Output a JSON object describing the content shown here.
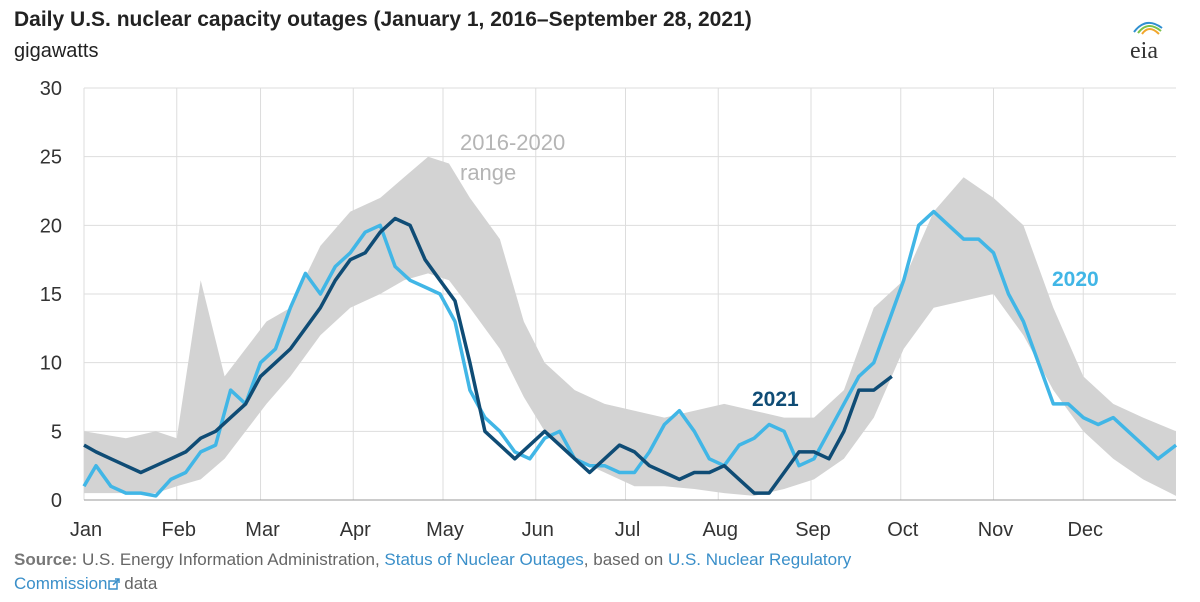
{
  "header": {
    "title": "Daily U.S. nuclear capacity outages (January 1, 2016–September 28, 2021)",
    "units": "gigawatts",
    "logo_text": "eia"
  },
  "source": {
    "label": "Source:",
    "text1": "U.S. Energy Information Administration,",
    "link1": "Status of Nuclear Outages",
    "text2": ", based on",
    "link2a": "U.S. Nuclear Regulatory",
    "link2b": "Commission",
    "text3": "data"
  },
  "colors": {
    "range_fill": "#d3d3d3",
    "series_2020": "#41b6e6",
    "series_2021": "#0f4c75",
    "grid": "#dddddd",
    "range_label": "#b5b5b5"
  },
  "chart_data": {
    "type": "line",
    "xlabel": "",
    "ylabel": "gigawatts",
    "x_unit": "day of year",
    "ylim": [
      0,
      30
    ],
    "yticks": [
      0,
      5,
      10,
      15,
      20,
      25,
      30
    ],
    "month_labels": [
      "Jan",
      "Feb",
      "Mar",
      "Apr",
      "May",
      "Jun",
      "Jul",
      "Aug",
      "Sep",
      "Oct",
      "Nov",
      "Dec"
    ],
    "month_start_days": [
      1,
      32,
      60,
      91,
      121,
      152,
      182,
      213,
      244,
      274,
      305,
      335
    ],
    "grid": true,
    "annotations": [
      {
        "text": "2016-2020",
        "line2": "range"
      },
      {
        "text": "2021"
      },
      {
        "text": "2020"
      }
    ],
    "range": {
      "name": "2016-2020 range",
      "x": [
        1,
        15,
        25,
        32,
        40,
        48,
        55,
        62,
        70,
        80,
        90,
        100,
        108,
        116,
        123,
        130,
        140,
        148,
        155,
        165,
        175,
        185,
        195,
        205,
        215,
        225,
        235,
        245,
        255,
        265,
        275,
        285,
        295,
        305,
        315,
        325,
        335,
        345,
        355,
        366
      ],
      "low": [
        0.5,
        0.5,
        0.5,
        1.0,
        1.5,
        3.0,
        5.0,
        7.0,
        9.0,
        12.0,
        14.0,
        15.0,
        16.0,
        16.5,
        16.0,
        14.0,
        11.0,
        7.5,
        5.0,
        3.0,
        2.0,
        1.0,
        1.0,
        0.8,
        0.5,
        0.3,
        0.8,
        1.5,
        3.0,
        6.0,
        11.0,
        14.0,
        14.5,
        15.0,
        12.0,
        8.0,
        5.0,
        3.0,
        1.5,
        0.3
      ],
      "high": [
        5.0,
        4.5,
        5.0,
        4.5,
        16.0,
        9.0,
        11.0,
        13.0,
        14.0,
        18.5,
        21.0,
        22.0,
        23.5,
        25.0,
        24.5,
        22.0,
        19.0,
        13.0,
        10.0,
        8.0,
        7.0,
        6.5,
        6.0,
        6.5,
        7.0,
        6.5,
        6.0,
        6.0,
        8.0,
        14.0,
        16.0,
        21.0,
        23.5,
        22.0,
        20.0,
        14.0,
        9.0,
        7.0,
        6.0,
        5.0
      ]
    },
    "series": [
      {
        "name": "2020",
        "x": [
          1,
          5,
          10,
          15,
          20,
          25,
          30,
          35,
          40,
          45,
          50,
          55,
          60,
          65,
          70,
          75,
          80,
          85,
          90,
          95,
          100,
          105,
          110,
          115,
          120,
          125,
          130,
          135,
          140,
          145,
          150,
          155,
          160,
          165,
          170,
          175,
          180,
          185,
          190,
          195,
          200,
          205,
          210,
          215,
          220,
          225,
          230,
          235,
          240,
          245,
          250,
          255,
          260,
          265,
          270,
          275,
          280,
          285,
          290,
          295,
          300,
          305,
          310,
          315,
          320,
          325,
          330,
          335,
          340,
          345,
          350,
          355,
          360,
          366
        ],
        "values": [
          1.0,
          2.5,
          1.0,
          0.5,
          0.5,
          0.3,
          1.5,
          2.0,
          3.5,
          4.0,
          8.0,
          7.0,
          10.0,
          11.0,
          14.0,
          16.5,
          15.0,
          17.0,
          18.0,
          19.5,
          20.0,
          17.0,
          16.0,
          15.5,
          15.0,
          13.0,
          8.0,
          6.0,
          5.0,
          3.5,
          3.0,
          4.5,
          5.0,
          3.0,
          2.5,
          2.5,
          2.0,
          2.0,
          3.5,
          5.5,
          6.5,
          5.0,
          3.0,
          2.5,
          4.0,
          4.5,
          5.5,
          5.0,
          2.5,
          3.0,
          5.0,
          7.0,
          9.0,
          10.0,
          13.0,
          16.0,
          20.0,
          21.0,
          20.0,
          19.0,
          19.0,
          18.0,
          15.0,
          13.0,
          10.0,
          7.0,
          7.0,
          6.0,
          5.5,
          6.0,
          5.0,
          4.0,
          3.0,
          4.0
        ]
      },
      {
        "name": "2021",
        "x": [
          1,
          5,
          10,
          15,
          20,
          25,
          30,
          35,
          40,
          45,
          50,
          55,
          60,
          65,
          70,
          75,
          80,
          85,
          90,
          95,
          100,
          105,
          110,
          115,
          120,
          125,
          130,
          135,
          140,
          145,
          150,
          155,
          160,
          165,
          170,
          175,
          180,
          185,
          190,
          195,
          200,
          205,
          210,
          215,
          220,
          225,
          230,
          235,
          240,
          245,
          250,
          255,
          260,
          265,
          271
        ],
        "values": [
          4.0,
          3.5,
          3.0,
          2.5,
          2.0,
          2.5,
          3.0,
          3.5,
          4.5,
          5.0,
          6.0,
          7.0,
          9.0,
          10.0,
          11.0,
          12.5,
          14.0,
          16.0,
          17.5,
          18.0,
          19.5,
          20.5,
          20.0,
          17.5,
          16.0,
          14.5,
          10.0,
          5.0,
          4.0,
          3.0,
          4.0,
          5.0,
          4.0,
          3.0,
          2.0,
          3.0,
          4.0,
          3.5,
          2.5,
          2.0,
          1.5,
          2.0,
          2.0,
          2.5,
          1.5,
          0.5,
          0.5,
          2.0,
          3.5,
          3.5,
          3.0,
          5.0,
          8.0,
          8.0,
          9.0
        ]
      }
    ]
  }
}
